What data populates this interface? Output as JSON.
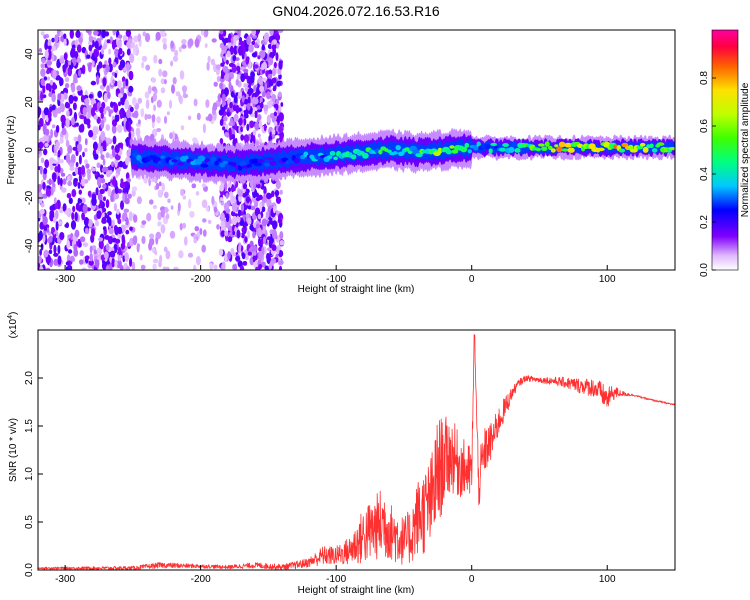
{
  "page_title": "GN04.2026.072.16.53.R16",
  "chart_data": [
    {
      "type": "heatmap",
      "title": "GN04.2026.072.16.53.R16",
      "xlabel": "Height of straight line (km)",
      "ylabel": "Frequency (Hz)",
      "xlim": [
        -320,
        150
      ],
      "ylim": [
        -50,
        50
      ],
      "xticks": [
        -300,
        -200,
        -100,
        0,
        100
      ],
      "yticks": [
        -40,
        -20,
        0,
        20,
        40
      ],
      "colorbar": {
        "label": "Normalized spectral amplitude",
        "range": [
          0,
          1
        ],
        "ticks": [
          0.0,
          0.2,
          0.4,
          0.6,
          0.8
        ],
        "tick_labels": [
          "0.0",
          "0.2",
          "0.4",
          "0.6",
          "0.8"
        ]
      },
      "signal_track": {
        "x": [
          -250,
          -200,
          -170,
          -140,
          -100,
          -60,
          -40,
          -20,
          0,
          30,
          60,
          100,
          150
        ],
        "center_frequency": [
          -3,
          -5,
          -6,
          -4,
          -2,
          0,
          -1,
          0,
          1,
          1,
          1,
          1,
          1
        ],
        "peak_amplitude": [
          0.35,
          0.35,
          0.3,
          0.3,
          0.45,
          0.55,
          0.55,
          0.7,
          0.45,
          0.45,
          0.85,
          0.9,
          0.6
        ]
      },
      "noise_regions": [
        {
          "x_range": [
            -320,
            -250
          ],
          "amplitude": "high"
        },
        {
          "x_range": [
            -250,
            -185
          ],
          "amplitude": "low"
        },
        {
          "x_range": [
            -185,
            -140
          ],
          "amplitude": "high"
        }
      ]
    },
    {
      "type": "line",
      "xlabel": "Height of straight line (km)",
      "ylabel": "SNR (10 * v/v)",
      "scale_label": "(x10",
      "scale_exp": "4",
      "scale_close": ")",
      "xlim": [
        -320,
        150
      ],
      "ylim": [
        0,
        2.5
      ],
      "xticks": [
        -300,
        -200,
        -100,
        0,
        100
      ],
      "yticks": [
        0.0,
        0.5,
        1.0,
        1.5,
        2.0
      ],
      "ytick_labels": [
        "0.0",
        "0.5",
        "1.0",
        "1.5",
        "2.0"
      ],
      "color": "#ff3030",
      "series": [
        {
          "name": "SNR",
          "x": [
            -320,
            -250,
            -230,
            -200,
            -180,
            -160,
            -140,
            -130,
            -120,
            -110,
            -100,
            -90,
            -80,
            -70,
            -65,
            -60,
            -55,
            -50,
            -45,
            -40,
            -35,
            -30,
            -25,
            -20,
            -15,
            -10,
            -5,
            0,
            2,
            5,
            10,
            15,
            20,
            25,
            30,
            35,
            40,
            50,
            60,
            70,
            80,
            90,
            95,
            100,
            105,
            110,
            120,
            130,
            140,
            150
          ],
          "y": [
            0.02,
            0.02,
            0.05,
            0.04,
            0.03,
            0.05,
            0.03,
            0.05,
            0.08,
            0.15,
            0.15,
            0.2,
            0.35,
            0.45,
            0.5,
            0.4,
            0.35,
            0.3,
            0.35,
            0.55,
            0.6,
            0.7,
            1.0,
            1.15,
            1.2,
            1.1,
            1.05,
            1.0,
            2.45,
            0.9,
            1.25,
            1.35,
            1.55,
            1.7,
            1.85,
            1.95,
            2.0,
            1.98,
            1.97,
            1.95,
            1.92,
            1.9,
            1.85,
            1.78,
            1.85,
            1.84,
            1.82,
            1.78,
            1.75,
            1.72
          ],
          "noise_amplitude": [
            0.01,
            0.02,
            0.03,
            0.02,
            0.02,
            0.03,
            0.03,
            0.04,
            0.05,
            0.1,
            0.1,
            0.15,
            0.3,
            0.35,
            0.4,
            0.3,
            0.3,
            0.25,
            0.3,
            0.4,
            0.45,
            0.5,
            0.6,
            0.45,
            0.4,
            0.35,
            0.3,
            0.3,
            0.0,
            0.3,
            0.25,
            0.2,
            0.15,
            0.12,
            0.06,
            0.04,
            0.03,
            0.03,
            0.04,
            0.06,
            0.08,
            0.1,
            0.12,
            0.12,
            0.08,
            0.03,
            0.01,
            0.01,
            0.01,
            0.01
          ]
        }
      ]
    }
  ]
}
